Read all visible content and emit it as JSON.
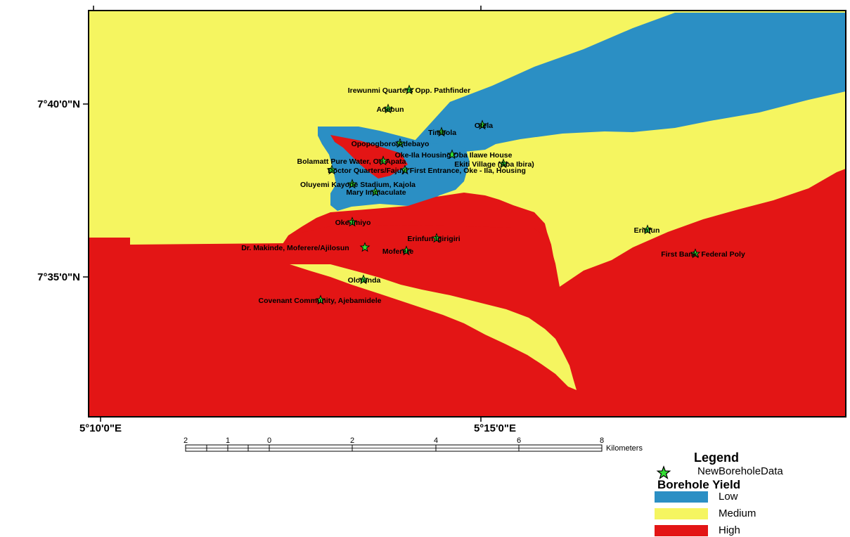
{
  "map": {
    "coordinates": {
      "lat_north": "7°40'0\"N",
      "lat_south": "7°35'0\"N",
      "lon_west": "5°10'0\"E",
      "lon_east": "5°15'0\"E"
    },
    "zone_colors": {
      "low": "#2b8fc4",
      "medium": "#f5f560",
      "high": "#e31515"
    },
    "sites": [
      {
        "name": "Irewunmi Quarters Opp. Pathfinder"
      },
      {
        "name": "Adebun"
      },
      {
        "name": "Otela"
      },
      {
        "name": "Timbola"
      },
      {
        "name": "Opopogboro/Adebayo"
      },
      {
        "name": "Oke-Ila Housing Oba Ilawe House"
      },
      {
        "name": "Bolamatt Pure Water, Ori Apata"
      },
      {
        "name": "Ekiti Village (Aba Ibira)"
      },
      {
        "name": "Doctor Quarters/Fajuyi First Entrance, Oke - Ila, Housing"
      },
      {
        "name": "Oluyemi Kayode Stadium, Kajola"
      },
      {
        "name": "Mary Immaculate"
      },
      {
        "name": "Oke-Imiyo"
      },
      {
        "name": "Erinfun Igirigiri"
      },
      {
        "name": "Erinfun"
      },
      {
        "name": "Dr. Makinde, Moferere/Ajilosun"
      },
      {
        "name": "Moferere"
      },
      {
        "name": "First Bank, Federal Poly"
      },
      {
        "name": "Olorunda"
      },
      {
        "name": "Covenant Community, Ajebamidele"
      }
    ]
  },
  "scale_bar": {
    "ticks": [
      "2",
      "1",
      "0",
      "2",
      "4",
      "6",
      "8"
    ],
    "unit": "Kilometers"
  },
  "legend": {
    "title": "Legend",
    "point_layer": "NewBoreholeData",
    "heading": "Borehole Yield",
    "classes": [
      {
        "label": "Low",
        "color": "#2b8fc4"
      },
      {
        "label": "Medium",
        "color": "#f5f560"
      },
      {
        "label": "High",
        "color": "#e31515"
      }
    ]
  }
}
